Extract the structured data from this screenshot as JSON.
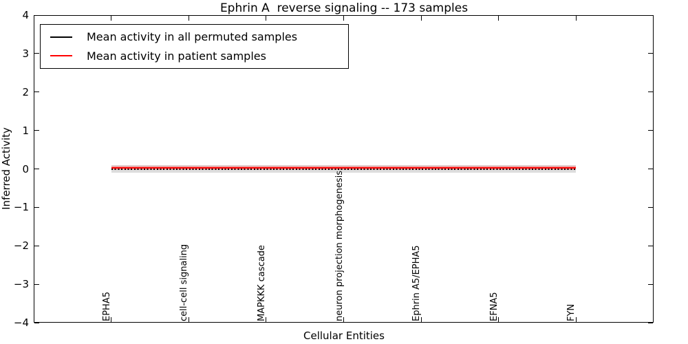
{
  "chart_data": {
    "type": "line",
    "title": "Ephrin A  reverse signaling -- 173 samples",
    "xlabel": "Cellular Entities",
    "ylabel": "Inferred Activity",
    "xlim": [
      -1,
      7
    ],
    "ylim": [
      -4,
      4
    ],
    "grid": false,
    "legend_position": "upper left",
    "yticks": [
      4,
      3,
      2,
      1,
      0,
      -1,
      -2,
      -3,
      -4
    ],
    "ytick_labels": [
      "4",
      "3",
      "2",
      "1",
      "0",
      "−1",
      "−2",
      "−3",
      "−4"
    ],
    "categories": [
      "EPHA5",
      "cell-cell signaling",
      "MAPKKK cascade",
      "neuron projection morphogenesis",
      "Ephrin A5/EPHA5",
      "EFNA5",
      "FYN"
    ],
    "series": [
      {
        "name": "Mean activity in all permuted samples",
        "color": "#000000",
        "line_style": "dotted",
        "values": [
          0.0,
          0.0,
          0.0,
          0.0,
          0.0,
          0.0,
          0.0
        ],
        "band_halfwidth": 0.09,
        "band_color": "rgba(120,120,120,0.25)"
      },
      {
        "name": "Mean activity in patient samples",
        "color": "#ff0000",
        "line_style": "solid",
        "values": [
          0.02,
          0.02,
          0.02,
          0.02,
          0.02,
          0.02,
          0.02
        ],
        "band_halfwidth": 0.055,
        "band_color": "rgba(255,70,70,0.35)"
      }
    ]
  }
}
